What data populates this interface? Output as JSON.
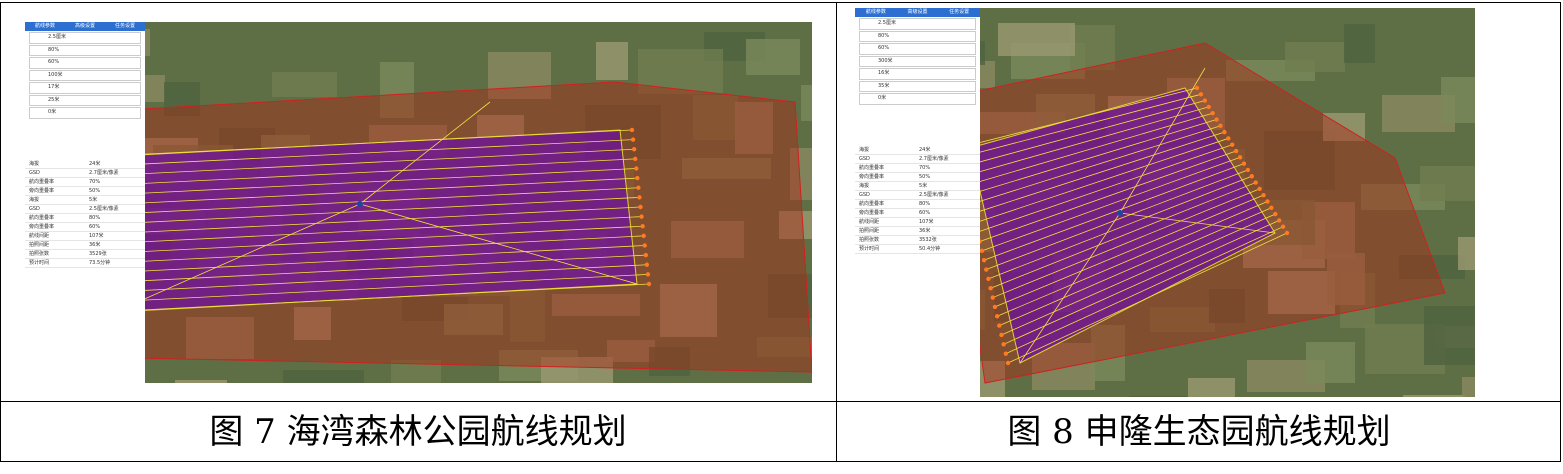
{
  "figures": [
    {
      "caption": "图 7  海湾森林公园航线规划",
      "tabs": [
        "航线参数",
        "高级设置",
        "任务设置"
      ],
      "params": [
        "2.5厘米",
        "80%",
        "60%",
        "100米",
        "17米",
        "25米",
        "0米"
      ],
      "stats": [
        [
          "海拔",
          "24米"
        ],
        [
          "GSD",
          "2.7厘米/像素"
        ],
        [
          "航向重叠率",
          "70%"
        ],
        [
          "旁向重叠率",
          "50%"
        ],
        [
          "海拔",
          "5米"
        ],
        [
          "GSD",
          "2.5厘米/像素"
        ],
        [
          "航向重叠率",
          "80%"
        ],
        [
          "旁向重叠率",
          "60%"
        ],
        [
          "航线间距",
          "107米"
        ],
        [
          "拍照间距",
          "36米"
        ],
        [
          "拍照张数",
          "3529张"
        ],
        [
          "预计时间",
          "73.5分钟"
        ]
      ]
    },
    {
      "caption": "图 8  申隆生态园航线规划",
      "tabs": [
        "航线参数",
        "高级设置",
        "任务设置"
      ],
      "params": [
        "2.5厘米",
        "80%",
        "60%",
        "300米",
        "16米",
        "35米",
        "0米"
      ],
      "stats": [
        [
          "海拔",
          "24米"
        ],
        [
          "GSD",
          "2.7厘米/像素"
        ],
        [
          "航向重叠率",
          "70%"
        ],
        [
          "旁向重叠率",
          "50%"
        ],
        [
          "海拔",
          "5米"
        ],
        [
          "GSD",
          "2.5厘米/像素"
        ],
        [
          "航向重叠率",
          "80%"
        ],
        [
          "旁向重叠率",
          "60%"
        ],
        [
          "航线间距",
          "107米"
        ],
        [
          "拍照间距",
          "36米"
        ],
        [
          "拍照张数",
          "3532张"
        ],
        [
          "预计时间",
          "50.4分钟"
        ]
      ]
    }
  ]
}
